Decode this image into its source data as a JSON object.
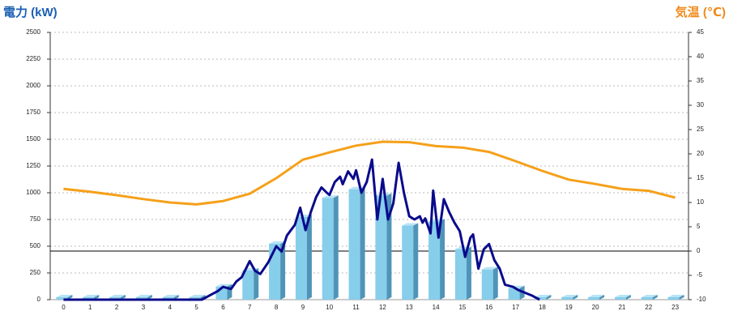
{
  "chart_data": {
    "type": "bar",
    "y_title": "電力 (kW)",
    "y2_title": "気温 (℃)",
    "categories": [
      "0",
      "1",
      "2",
      "3",
      "4",
      "5",
      "6",
      "7",
      "8",
      "9",
      "10",
      "11",
      "12",
      "13",
      "14",
      "15",
      "16",
      "17",
      "18",
      "19",
      "20",
      "21",
      "22",
      "23"
    ],
    "ylim": [
      0,
      2500
    ],
    "yticks": [
      0,
      250,
      500,
      750,
      1000,
      1250,
      1500,
      1750,
      2000,
      2250,
      2500
    ],
    "y2lim": [
      -10,
      45
    ],
    "y2ticks": [
      -10,
      -5,
      0,
      5,
      10,
      15,
      20,
      25,
      30,
      35,
      40,
      45
    ],
    "grid": true,
    "series": [
      {
        "type": "bar",
        "color": "#87ceeb",
        "values": [
          0,
          0,
          0,
          0,
          0,
          0,
          100,
          250,
          500,
          750,
          930,
          1010,
          950,
          670,
          710,
          450,
          260,
          85,
          0,
          0,
          0,
          0,
          0,
          0
        ]
      },
      {
        "type": "line",
        "color": "#0a0a8c",
        "xlim": [
          0,
          23
        ],
        "x": [
          0,
          5.2,
          5.5,
          5.8,
          6.0,
          6.3,
          6.5,
          6.7,
          7.0,
          7.2,
          7.4,
          7.7,
          8.0,
          8.2,
          8.4,
          8.7,
          8.9,
          9.1,
          9.3,
          9.5,
          9.7,
          9.9,
          10.0,
          10.2,
          10.4,
          10.5,
          10.7,
          10.9,
          11.0,
          11.2,
          11.4,
          11.6,
          11.8,
          12.0,
          12.2,
          12.4,
          12.6,
          12.8,
          13.0,
          13.2,
          13.4,
          13.5,
          13.6,
          13.8,
          13.9,
          14.1,
          14.3,
          14.5,
          14.7,
          14.9,
          15.1,
          15.3,
          15.4,
          15.6,
          15.8,
          16.0,
          16.2,
          16.4,
          16.6,
          16.9,
          17.1,
          17.4,
          17.6,
          17.9
        ],
        "values": [
          0,
          0,
          40,
          80,
          120,
          100,
          170,
          210,
          360,
          270,
          240,
          350,
          500,
          450,
          600,
          700,
          860,
          650,
          820,
          960,
          1050,
          1000,
          980,
          1100,
          1150,
          1080,
          1200,
          1130,
          1210,
          1000,
          1100,
          1310,
          750,
          1130,
          750,
          900,
          1280,
          1000,
          780,
          750,
          780,
          720,
          760,
          620,
          1020,
          580,
          940,
          820,
          720,
          640,
          400,
          580,
          610,
          290,
          470,
          520,
          370,
          290,
          140,
          120,
          90,
          60,
          40,
          0
        ]
      },
      {
        "type": "line",
        "axis": "y2",
        "color": "#f5a01a",
        "values": [
          12.8,
          12.2,
          11.5,
          10.7,
          10.0,
          9.6,
          10.3,
          11.8,
          15.0,
          18.8,
          20.3,
          21.7,
          22.5,
          22.4,
          21.6,
          21.3,
          20.4,
          18.5,
          16.5,
          14.7,
          13.8,
          12.8,
          12.4,
          11.0
        ]
      }
    ]
  }
}
